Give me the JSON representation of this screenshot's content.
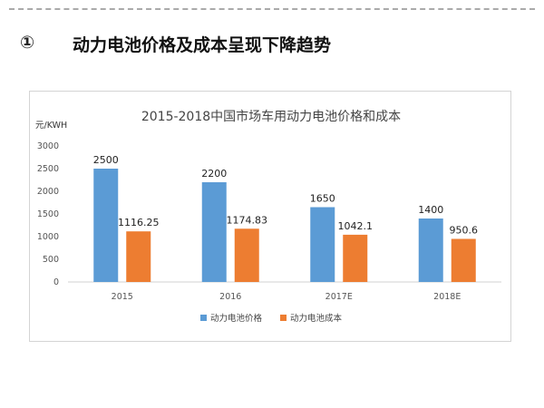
{
  "slide": {
    "number": "①",
    "heading": "动力电池价格及成本呈现下降趋势"
  },
  "chart_data": {
    "type": "bar",
    "title": "2015-2018中国市场车用动力电池价格和成本",
    "ylabel": "元/KWH",
    "xlabel": "",
    "categories": [
      "2015",
      "2016",
      "2017E",
      "2018E"
    ],
    "series": [
      {
        "name": "动力电池价格",
        "color": "#5b9bd5",
        "values": [
          2500,
          2200,
          1650,
          1400
        ],
        "labels": [
          "2500",
          "2200",
          "1650",
          "1400"
        ]
      },
      {
        "name": "动力电池成本",
        "color": "#ed7d31",
        "values": [
          1116.25,
          1174.83,
          1042.1,
          950.6
        ],
        "labels": [
          "1116.25",
          "1174.83",
          "1042.1",
          "950.6"
        ]
      }
    ],
    "ylim": [
      0,
      3000
    ],
    "yticks": [
      "0",
      "500",
      "1000",
      "1500",
      "2000",
      "2500",
      "3000"
    ],
    "grid": false,
    "legend": "bottom"
  }
}
